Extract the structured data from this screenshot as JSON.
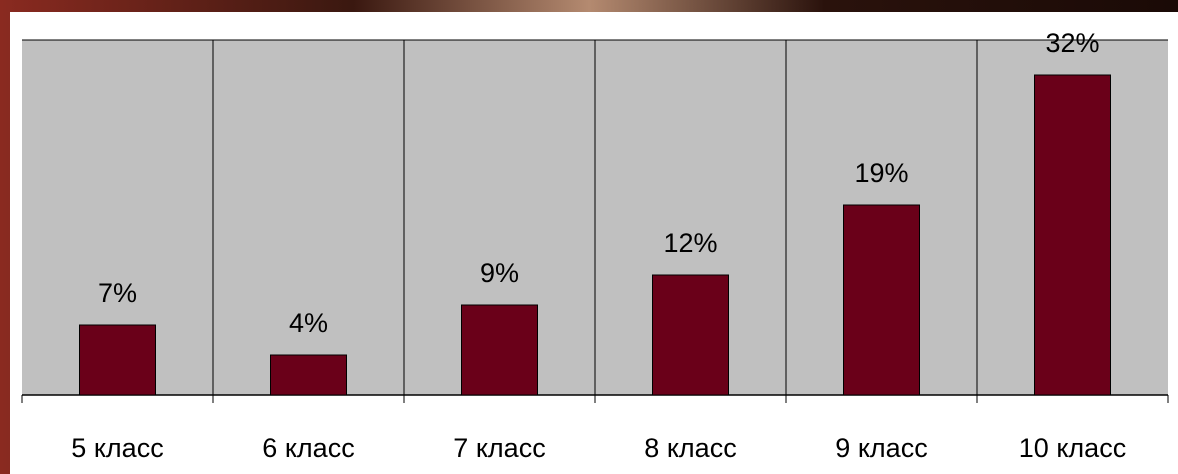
{
  "chart_data": {
    "type": "bar",
    "categories": [
      "5 класс",
      "6 класс",
      "7 класс",
      "8 класс",
      "9 класс",
      "10 класс"
    ],
    "values": [
      7,
      4,
      9,
      12,
      19,
      32
    ],
    "value_labels": [
      "7%",
      "4%",
      "9%",
      "12%",
      "19%",
      "32%"
    ],
    "color": "#6a0019",
    "ylim": [
      0,
      35.5
    ]
  }
}
